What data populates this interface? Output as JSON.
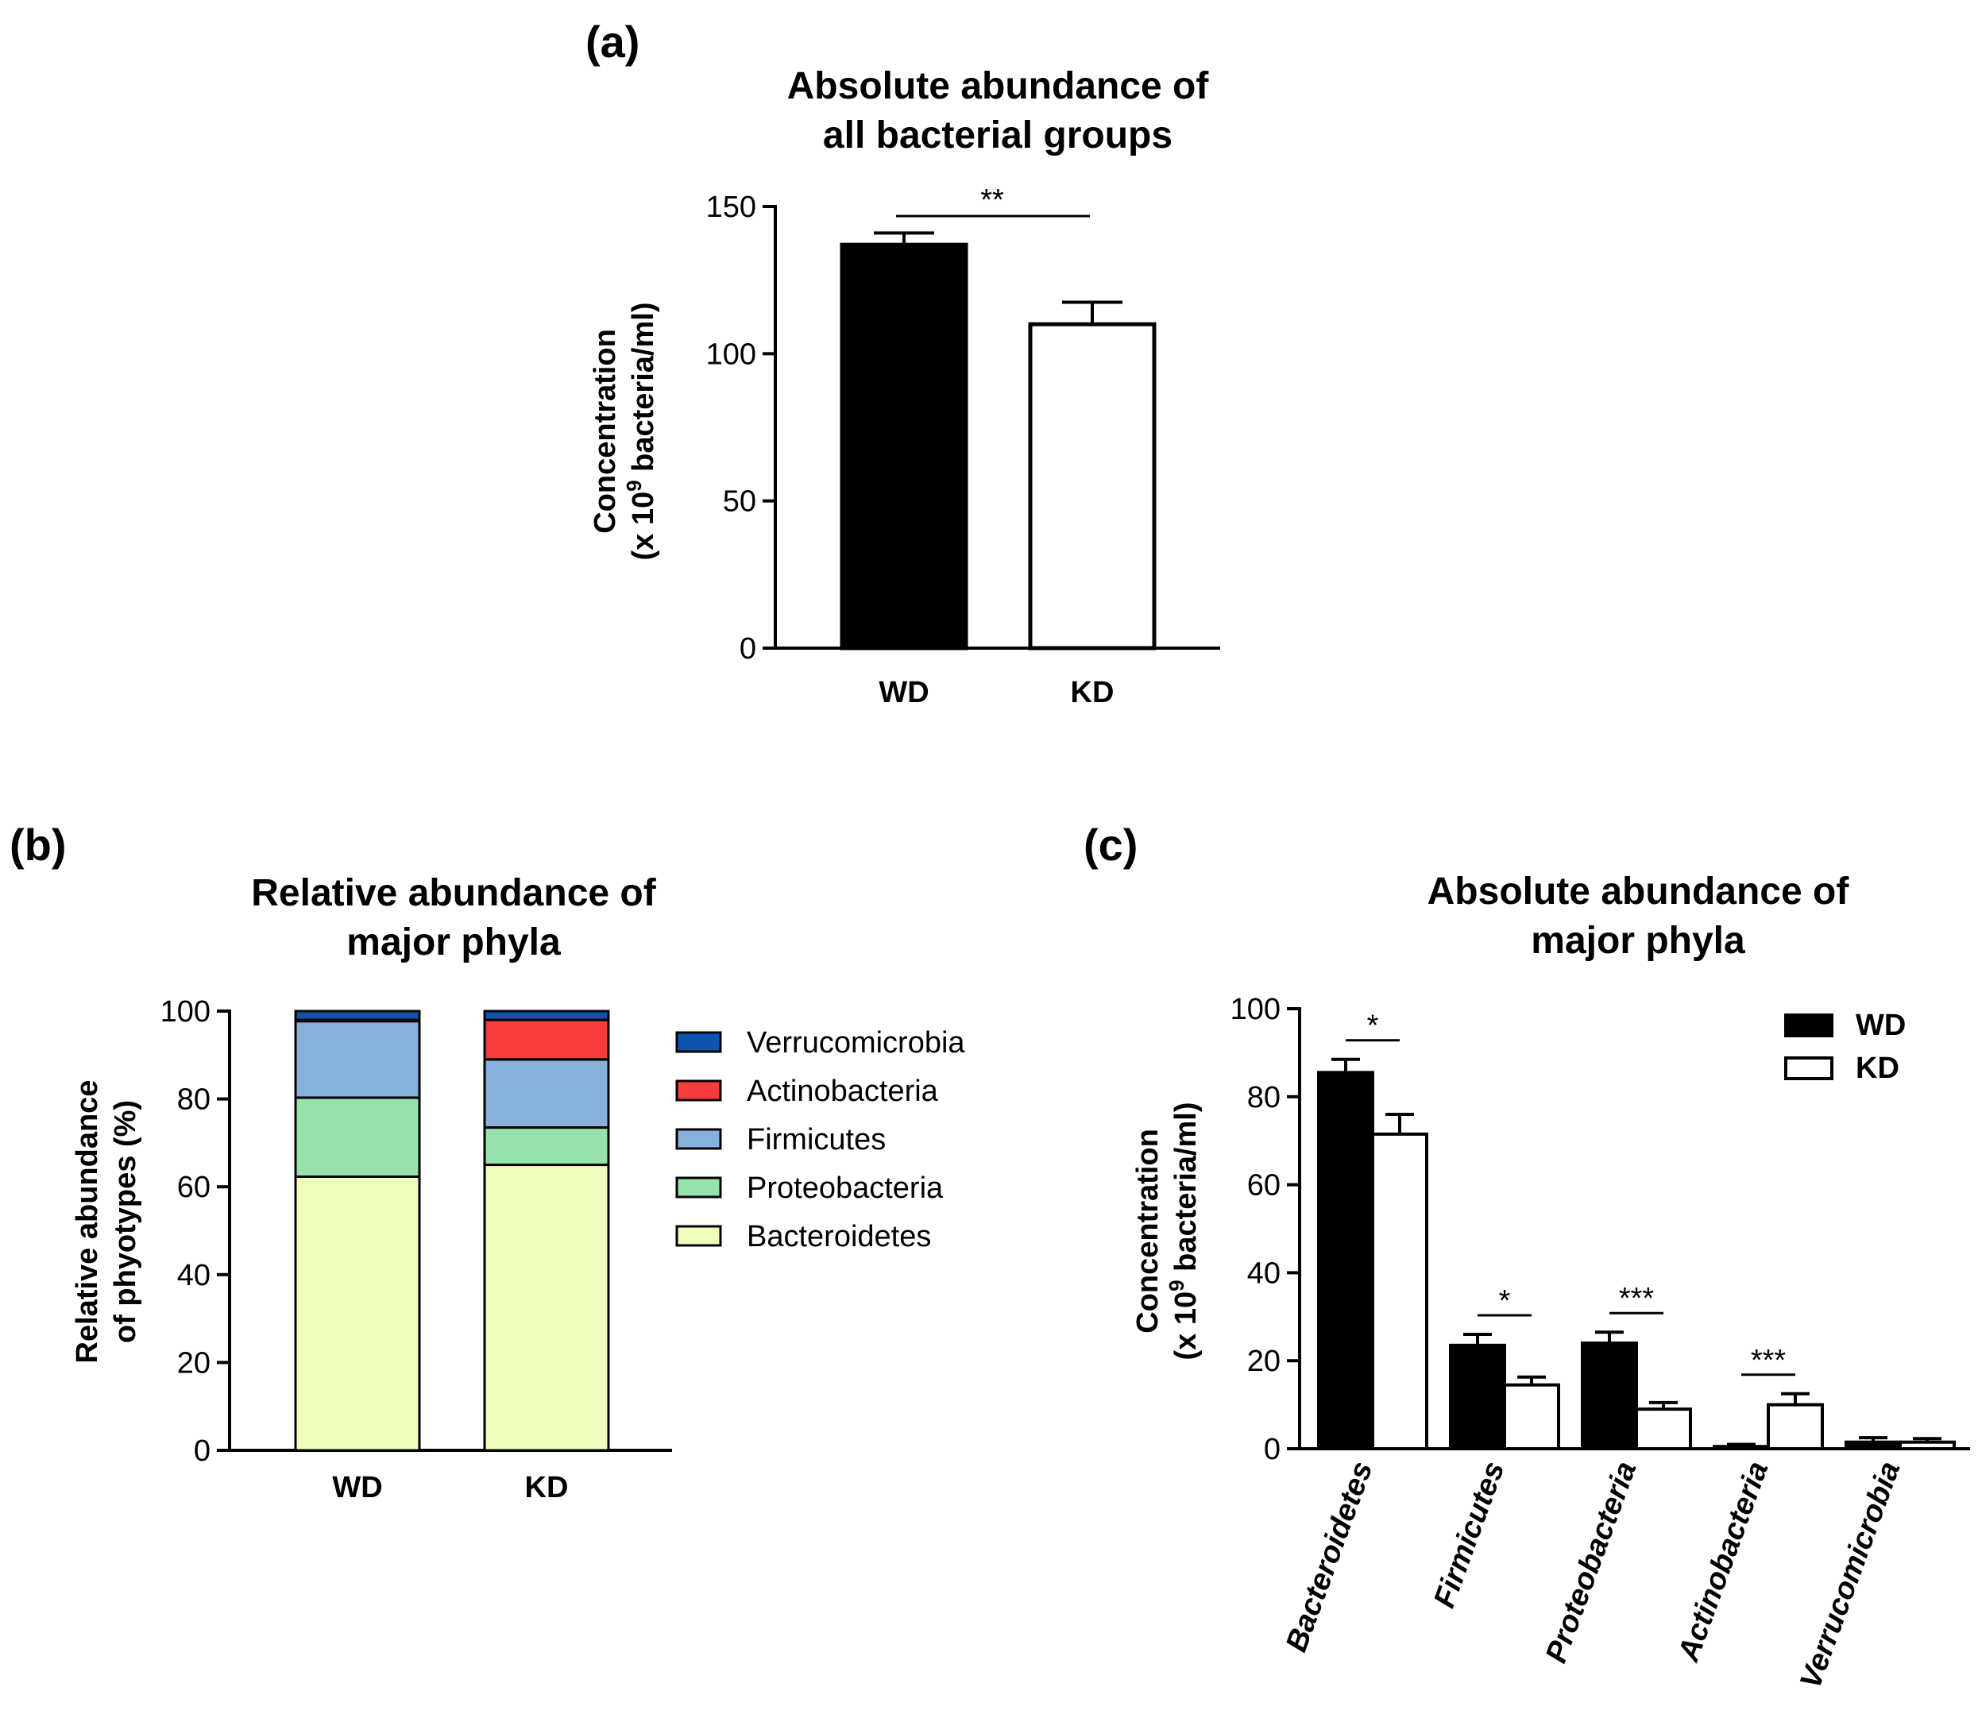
{
  "chart_data": [
    {
      "panel": "(a)",
      "type": "bar",
      "title": [
        "Absolute abundance of",
        "all bacterial groups"
      ],
      "ylabel": [
        "Concentration",
        "(x 10",
        "9",
        " bacteria/ml)"
      ],
      "ylim": [
        0,
        150
      ],
      "yticks": [
        0,
        50,
        100,
        150
      ],
      "categories": [
        "WD",
        "KD"
      ],
      "values": [
        137,
        110
      ],
      "errors": [
        4,
        7.5
      ],
      "fills": [
        "#000000",
        "#ffffff"
      ],
      "significance": [
        {
          "from": 0,
          "to": 1,
          "label": "**"
        }
      ]
    },
    {
      "panel": "(b)",
      "type": "bar",
      "stacked": true,
      "title": [
        "Relative abundance of",
        "major phyla"
      ],
      "ylabel": [
        "Relative abundance",
        "of phyotypes (%)"
      ],
      "ylim": [
        0,
        100
      ],
      "yticks": [
        0,
        20,
        40,
        60,
        80,
        100
      ],
      "categories": [
        "WD",
        "KD"
      ],
      "legend_position": "right",
      "series": [
        {
          "name": "Bacteroidetes",
          "color": "#eefcbc",
          "values": [
            62.3,
            65.0
          ]
        },
        {
          "name": "Proteobacteria",
          "color": "#96e2ab",
          "values": [
            18.0,
            8.5
          ]
        },
        {
          "name": "Firmicutes",
          "color": "#86b1da",
          "values": [
            17.4,
            15.5
          ]
        },
        {
          "name": "Actinobacteria",
          "color": "#f83b3b",
          "values": [
            0.3,
            9.0
          ]
        },
        {
          "name": "Verrucomicrobia",
          "color": "#0c54ad",
          "values": [
            2.0,
            2.0
          ]
        }
      ]
    },
    {
      "panel": "(c)",
      "type": "bar",
      "title": [
        "Absolute abundance of",
        "major phyla"
      ],
      "ylabel": [
        "Concentration",
        "(x 10",
        "9",
        " bacteria/ml)"
      ],
      "ylim": [
        0,
        100
      ],
      "yticks": [
        0,
        20,
        40,
        60,
        80,
        100
      ],
      "categories": [
        "Bacteroidetes",
        "Firmicutes",
        "Proteobacteria",
        "Actinobacteria",
        "Verrucomicrobia"
      ],
      "legend_position": "top-right",
      "series": [
        {
          "name": "WD",
          "fill": "#000000",
          "values": [
            85.5,
            23.5,
            24.0,
            0.5,
            1.5
          ],
          "errors": [
            3,
            2.5,
            2.5,
            0.5,
            1
          ]
        },
        {
          "name": "KD",
          "fill": "#ffffff",
          "values": [
            71.5,
            14.5,
            9.0,
            10.0,
            1.5
          ],
          "errors": [
            4.5,
            1.8,
            1.5,
            2.5,
            0.8
          ]
        }
      ],
      "significance": [
        {
          "category": 0,
          "label": "*"
        },
        {
          "category": 1,
          "label": "*"
        },
        {
          "category": 2,
          "label": "***"
        },
        {
          "category": 3,
          "label": "***"
        }
      ]
    }
  ]
}
